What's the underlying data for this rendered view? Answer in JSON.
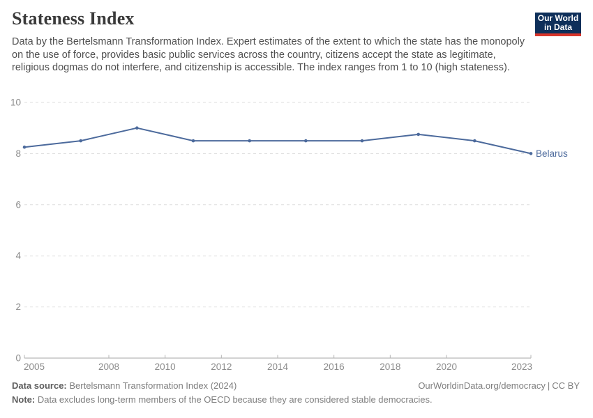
{
  "header": {
    "title": "Stateness Index",
    "subtitle": "Data by the Bertelsmann Transformation Index. Expert estimates of the extent to which the state has the monopoly on the use of force, provides basic public services across the country, citizens accept the state as legitimate, religious dogmas do not interfere, and citizenship is accessible. The index ranges from 1 to 10 (high stateness).",
    "logo": {
      "line1": "Our World",
      "line2": "in Data"
    }
  },
  "chart_data": {
    "type": "line",
    "title": "Stateness Index",
    "xlabel": "",
    "ylabel": "",
    "x": [
      2005,
      2007,
      2009,
      2011,
      2013,
      2015,
      2017,
      2019,
      2021,
      2023
    ],
    "series": [
      {
        "name": "Belarus",
        "color": "#4c6a9c",
        "values": [
          8.25,
          8.5,
          9.0,
          8.5,
          8.5,
          8.5,
          8.5,
          8.75,
          8.5,
          8.0
        ]
      }
    ],
    "xticks": [
      2005,
      2008,
      2010,
      2012,
      2014,
      2016,
      2018,
      2020,
      2023
    ],
    "yticks": [
      0,
      2,
      4,
      6,
      8,
      10
    ],
    "xlim": [
      2005,
      2023
    ],
    "ylim": [
      0,
      10
    ],
    "grid": "horizontal-dashed",
    "legend": "inline-end-label"
  },
  "footer": {
    "source_label": "Data source:",
    "source_text": "Bertelsmann Transformation Index (2024)",
    "rights_link": "OurWorldinData.org/democracy",
    "rights_separator": "|",
    "rights_license": "CC BY",
    "note_label": "Note:",
    "note_text": "Data excludes long-term members of the OECD because they are considered stable democracies."
  },
  "colors": {
    "series_blue": "#4c6a9c",
    "grid": "#dddddd",
    "axis": "#a5a5a5",
    "tick": "#b5b5b5",
    "tick_text": "#8b8b8b",
    "logo_bg": "#0e2f5a",
    "logo_red": "#d8352b"
  }
}
